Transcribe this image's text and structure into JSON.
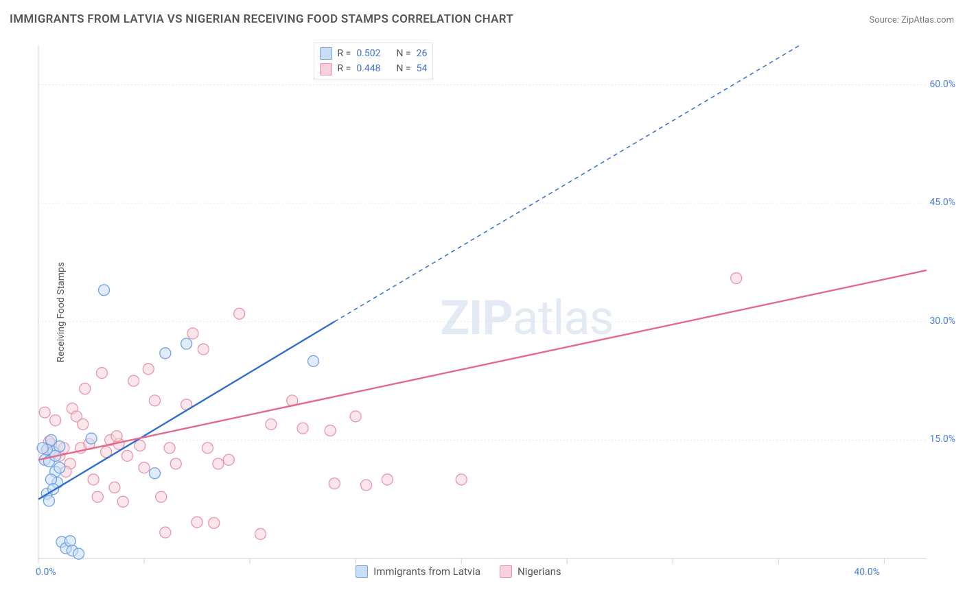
{
  "title": "IMMIGRANTS FROM LATVIA VS NIGERIAN RECEIVING FOOD STAMPS CORRELATION CHART",
  "source_label": "Source: ZipAtlas.com",
  "watermark": "ZIPatlas",
  "y_label": "Receiving Food Stamps",
  "chart": {
    "type": "scatter",
    "background_color": "#ffffff",
    "grid_color": "#e6e6e6",
    "axis_color": "#d0d0d0",
    "tick_color": "#d0d0d0",
    "tick_label_color": "#4a7fd6",
    "xlim": [
      0,
      42
    ],
    "ylim": [
      0,
      65
    ],
    "x_ticks": [
      0,
      5,
      10,
      15,
      20,
      25,
      30,
      35,
      40
    ],
    "x_tick_labels": {
      "0": "0.0%",
      "40": "40.0%"
    },
    "y_ticks": [
      15,
      30,
      45,
      60
    ],
    "y_tick_labels": {
      "15": "15.0%",
      "30": "30.0%",
      "45": "45.0%",
      "60": "60.0%"
    },
    "marker_radius": 8,
    "marker_stroke_width": 1.3,
    "trend_line_width": 2.4,
    "trend_dash": "6 5",
    "legend_top": {
      "rows": [
        {
          "swatch_fill": "#c9ddf5",
          "swatch_border": "#6ea2e3",
          "r_label": "R =",
          "r_value": "0.502",
          "n_label": "N =",
          "n_value": "26"
        },
        {
          "swatch_fill": "#f7d1db",
          "swatch_border": "#e994ac",
          "r_label": "R =",
          "r_value": "0.448",
          "n_label": "N =",
          "n_value": "54"
        }
      ],
      "value_color": "#3c72cf",
      "label_color": "#555"
    },
    "legend_bottom": {
      "items": [
        {
          "swatch_fill": "#c9ddf5",
          "swatch_border": "#6ea2e3",
          "label": "Immigrants from Latvia"
        },
        {
          "swatch_fill": "#f7d1db",
          "swatch_border": "#e994ac",
          "label": "Nigerians"
        }
      ]
    },
    "series": [
      {
        "name": "Immigrants from Latvia",
        "color_fill": "#c9ddf5",
        "color_stroke": "#6ea2e3",
        "trend_color": "#2f6fd0",
        "trend_solid": {
          "x1": 0,
          "y1": 7.5,
          "x2": 14,
          "y2": 30
        },
        "trend_dashed": {
          "x1": 14,
          "y1": 30,
          "x2": 36,
          "y2": 65
        },
        "points": [
          [
            0.3,
            12.5
          ],
          [
            0.4,
            8.2
          ],
          [
            0.5,
            7.3
          ],
          [
            0.6,
            15.0
          ],
          [
            0.7,
            13.5
          ],
          [
            0.8,
            11.0
          ],
          [
            0.9,
            9.6
          ],
          [
            1.0,
            14.2
          ],
          [
            1.1,
            2.1
          ],
          [
            1.3,
            1.3
          ],
          [
            1.5,
            2.2
          ],
          [
            1.6,
            1.0
          ],
          [
            1.9,
            0.6
          ],
          [
            0.4,
            13.8
          ],
          [
            0.5,
            12.3
          ],
          [
            0.6,
            10.0
          ],
          [
            0.7,
            8.8
          ],
          [
            0.8,
            13.0
          ],
          [
            1.0,
            11.5
          ],
          [
            2.5,
            15.2
          ],
          [
            3.1,
            34.0
          ],
          [
            5.5,
            10.8
          ],
          [
            6.0,
            26.0
          ],
          [
            7.0,
            27.2
          ],
          [
            13.0,
            25.0
          ],
          [
            0.2,
            14.0
          ]
        ]
      },
      {
        "name": "Nigerians",
        "color_fill": "#f7d1db",
        "color_stroke": "#e994ac",
        "trend_color": "#e46a8b",
        "trend_solid": {
          "x1": 0,
          "y1": 12.5,
          "x2": 42,
          "y2": 36.5
        },
        "points": [
          [
            0.3,
            18.5
          ],
          [
            0.4,
            13.8
          ],
          [
            0.6,
            14.5
          ],
          [
            0.8,
            17.5
          ],
          [
            1.0,
            13.0
          ],
          [
            1.2,
            14.0
          ],
          [
            1.5,
            12.0
          ],
          [
            1.6,
            19.0
          ],
          [
            1.8,
            18.0
          ],
          [
            2.0,
            14.0
          ],
          [
            2.2,
            21.5
          ],
          [
            2.4,
            14.5
          ],
          [
            2.6,
            10.0
          ],
          [
            2.8,
            7.8
          ],
          [
            3.0,
            23.5
          ],
          [
            3.2,
            13.5
          ],
          [
            3.4,
            15.0
          ],
          [
            3.6,
            9.0
          ],
          [
            3.8,
            14.5
          ],
          [
            4.0,
            7.2
          ],
          [
            4.2,
            13.0
          ],
          [
            4.5,
            22.5
          ],
          [
            5.0,
            11.5
          ],
          [
            5.2,
            24.0
          ],
          [
            5.5,
            20.0
          ],
          [
            5.8,
            7.8
          ],
          [
            6.0,
            3.3
          ],
          [
            6.2,
            14.0
          ],
          [
            6.5,
            12.0
          ],
          [
            7.0,
            19.5
          ],
          [
            7.3,
            28.5
          ],
          [
            7.5,
            4.6
          ],
          [
            7.8,
            26.5
          ],
          [
            8.0,
            14.0
          ],
          [
            8.3,
            4.5
          ],
          [
            8.5,
            12.0
          ],
          [
            9.0,
            12.5
          ],
          [
            9.5,
            31.0
          ],
          [
            10.5,
            3.1
          ],
          [
            11.0,
            17.0
          ],
          [
            12.0,
            20.0
          ],
          [
            12.5,
            16.5
          ],
          [
            13.8,
            16.2
          ],
          [
            15.0,
            18.0
          ],
          [
            14.0,
            9.5
          ],
          [
            15.5,
            9.3
          ],
          [
            16.5,
            10.0
          ],
          [
            20.0,
            10.0
          ],
          [
            0.5,
            14.8
          ],
          [
            1.3,
            11.0
          ],
          [
            2.1,
            17.0
          ],
          [
            3.7,
            15.5
          ],
          [
            4.8,
            14.3
          ],
          [
            33.0,
            35.5
          ]
        ]
      }
    ]
  }
}
